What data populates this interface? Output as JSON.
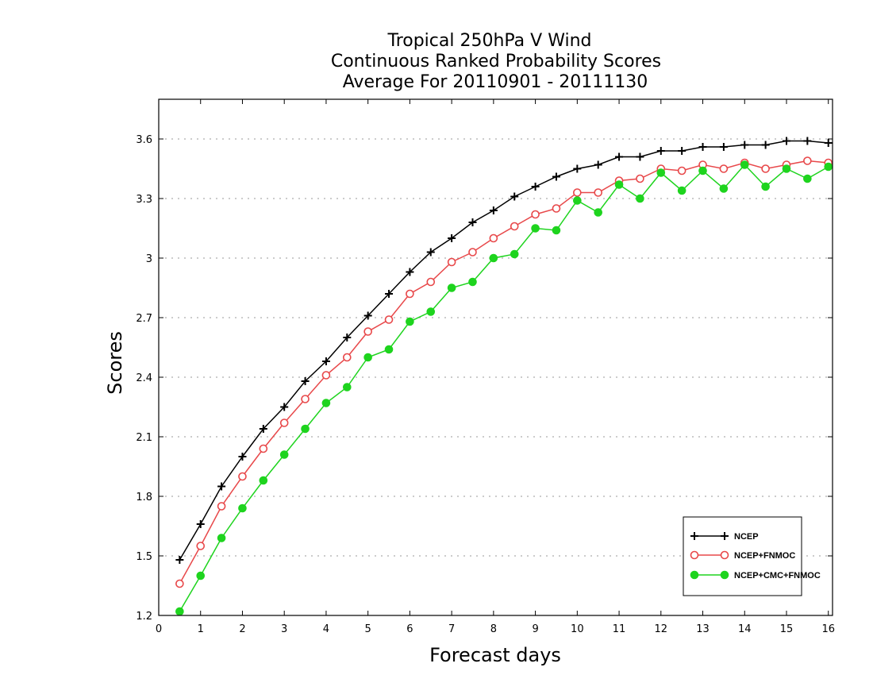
{
  "chart_data": {
    "type": "line",
    "title_lines": [
      "Tropical 250hPa V Wind",
      "Continuous Ranked Probability Scores",
      "Average For 20110901 - 20111130"
    ],
    "xlabel": "Forecast days",
    "ylabel": "Scores",
    "xlim": [
      0,
      16.1
    ],
    "ylim": [
      1.2,
      3.8
    ],
    "x_ticks": [
      0,
      1,
      2,
      3,
      4,
      5,
      6,
      7,
      8,
      9,
      10,
      11,
      12,
      13,
      14,
      15,
      16
    ],
    "y_ticks": [
      1.2,
      1.5,
      1.8,
      2.1,
      2.4,
      2.7,
      3.0,
      3.3,
      3.6
    ],
    "y_tick_labels": [
      "1.2",
      "1.5",
      "1.8",
      "2.1",
      "2.4",
      "2.7",
      "3",
      "3.3",
      "3.6"
    ],
    "grid": "horizontal dotted",
    "legend_position": "lower-right",
    "x": [
      0.5,
      1.0,
      1.5,
      2.0,
      2.5,
      3.0,
      3.5,
      4.0,
      4.5,
      5.0,
      5.5,
      6.0,
      6.5,
      7.0,
      7.5,
      8.0,
      8.5,
      9.0,
      9.5,
      10.0,
      10.5,
      11.0,
      11.5,
      12.0,
      12.5,
      13.0,
      13.5,
      14.0,
      14.5,
      15.0,
      15.5,
      16.0
    ],
    "series": [
      {
        "name": "NCEP",
        "color": "#000000",
        "marker": "plus",
        "values": [
          1.48,
          1.66,
          1.85,
          2.0,
          2.14,
          2.25,
          2.38,
          2.48,
          2.6,
          2.71,
          2.82,
          2.93,
          3.03,
          3.1,
          3.18,
          3.24,
          3.31,
          3.36,
          3.41,
          3.45,
          3.47,
          3.51,
          3.51,
          3.54,
          3.54,
          3.56,
          3.56,
          3.57,
          3.57,
          3.59,
          3.59,
          3.58
        ]
      },
      {
        "name": "NCEP+FNMOC",
        "color": "#e8484a",
        "marker": "open-circle",
        "values": [
          1.36,
          1.55,
          1.75,
          1.9,
          2.04,
          2.17,
          2.29,
          2.41,
          2.5,
          2.63,
          2.69,
          2.82,
          2.88,
          2.98,
          3.03,
          3.1,
          3.16,
          3.22,
          3.25,
          3.33,
          3.33,
          3.39,
          3.4,
          3.45,
          3.44,
          3.47,
          3.45,
          3.48,
          3.45,
          3.47,
          3.49,
          3.48
        ]
      },
      {
        "name": "NCEP+CMC+FNMOC",
        "color": "#1ed41e",
        "marker": "filled-circle",
        "values": [
          1.22,
          1.4,
          1.59,
          1.74,
          1.88,
          2.01,
          2.14,
          2.27,
          2.35,
          2.5,
          2.54,
          2.68,
          2.73,
          2.85,
          2.88,
          3.0,
          3.02,
          3.15,
          3.14,
          3.29,
          3.23,
          3.37,
          3.3,
          3.43,
          3.34,
          3.44,
          3.35,
          3.47,
          3.36,
          3.45,
          3.4,
          3.46
        ]
      }
    ]
  }
}
